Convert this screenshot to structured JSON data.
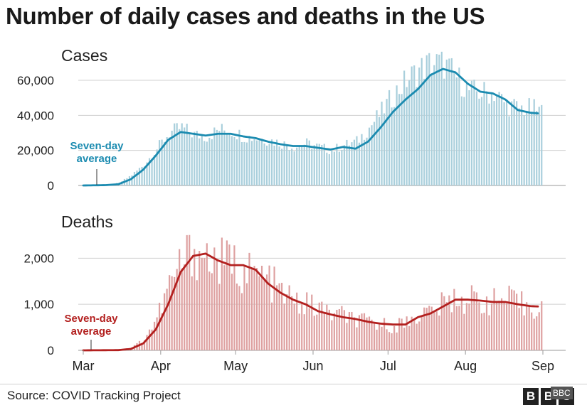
{
  "title": "Number of daily cases and deaths in the US",
  "source": "Source: COVID Tracking Project",
  "logo": "BBC",
  "logo_badge": "BBC",
  "colors": {
    "cases_bar": "#a9cfdc",
    "cases_line": "#1b8bb0",
    "deaths_bar": "#dea0a0",
    "deaths_line": "#b3201f",
    "grid": "#d0d0d0"
  },
  "chart_data": [
    {
      "type": "bar",
      "title": "Cases",
      "x_range": [
        "Mar 1",
        "Aug 31"
      ],
      "x_ticks": [
        "Mar",
        "Apr",
        "May",
        "Jun",
        "Jul",
        "Aug",
        "Sep"
      ],
      "ylim": [
        0,
        75000
      ],
      "y_ticks": [
        0,
        20000,
        40000,
        60000
      ],
      "y_tick_labels": [
        "0",
        "20,000",
        "40,000",
        "60,000"
      ],
      "grid": true,
      "annotation": [
        "Seven-day",
        "average"
      ],
      "series": [
        {
          "name": "Daily cases",
          "style": "bar",
          "daily_keyframes": [
            [
              "Mar 1",
              0
            ],
            [
              "Mar 10",
              300
            ],
            [
              "Mar 15",
              1500
            ],
            [
              "Mar 20",
              6000
            ],
            [
              "Mar 25",
              12000
            ],
            [
              "Mar 30",
              21000
            ],
            [
              "Apr 4",
              30000
            ],
            [
              "Apr 9",
              33000
            ],
            [
              "Apr 14",
              29000
            ],
            [
              "Apr 19",
              28000
            ],
            [
              "Apr 24",
              32000
            ],
            [
              "Apr 29",
              31000
            ],
            [
              "May 4",
              28000
            ],
            [
              "May 9",
              27000
            ],
            [
              "May 14",
              26000
            ],
            [
              "May 19",
              24000
            ],
            [
              "May 24",
              22000
            ],
            [
              "May 29",
              24000
            ],
            [
              "Jun 3",
              22000
            ],
            [
              "Jun 8",
              20000
            ],
            [
              "Jun 13",
              23000
            ],
            [
              "Jun 18",
              25000
            ],
            [
              "Jun 23",
              33000
            ],
            [
              "Jun 28",
              42000
            ],
            [
              "Jul 3",
              52000
            ],
            [
              "Jul 8",
              60000
            ],
            [
              "Jul 13",
              66000
            ],
            [
              "Jul 18",
              70000
            ],
            [
              "Jul 23",
              69000
            ],
            [
              "Jul 28",
              62000
            ],
            [
              "Aug 2",
              54000
            ],
            [
              "Aug 7",
              53000
            ],
            [
              "Aug 12",
              53000
            ],
            [
              "Aug 17",
              46000
            ],
            [
              "Aug 22",
              44000
            ],
            [
              "Aug 27",
              44000
            ],
            [
              "Aug 31",
              42000
            ]
          ]
        },
        {
          "name": "Seven-day average",
          "style": "line",
          "points": [
            [
              "Mar 1",
              0
            ],
            [
              "Mar 10",
              200
            ],
            [
              "Mar 15",
              700
            ],
            [
              "Mar 20",
              3500
            ],
            [
              "Mar 25",
              9000
            ],
            [
              "Mar 30",
              17000
            ],
            [
              "Apr 4",
              26000
            ],
            [
              "Apr 9",
              30500
            ],
            [
              "Apr 14",
              29500
            ],
            [
              "Apr 19",
              28500
            ],
            [
              "Apr 24",
              29500
            ],
            [
              "Apr 29",
              29500
            ],
            [
              "May 4",
              28000
            ],
            [
              "May 9",
              27000
            ],
            [
              "May 14",
              25000
            ],
            [
              "May 19",
              23500
            ],
            [
              "May 24",
              22500
            ],
            [
              "May 29",
              22500
            ],
            [
              "Jun 3",
              21500
            ],
            [
              "Jun 8",
              20500
            ],
            [
              "Jun 13",
              22000
            ],
            [
              "Jun 18",
              21000
            ],
            [
              "Jun 23",
              25000
            ],
            [
              "Jun 28",
              33000
            ],
            [
              "Jul 3",
              42000
            ],
            [
              "Jul 8",
              49000
            ],
            [
              "Jul 13",
              55000
            ],
            [
              "Jul 18",
              63000
            ],
            [
              "Jul 23",
              66500
            ],
            [
              "Jul 28",
              64500
            ],
            [
              "Aug 2",
              58000
            ],
            [
              "Aug 7",
              53500
            ],
            [
              "Aug 12",
              52500
            ],
            [
              "Aug 17",
              49000
            ],
            [
              "Aug 22",
              43000
            ],
            [
              "Aug 27",
              41500
            ],
            [
              "Aug 31",
              41000
            ]
          ]
        }
      ]
    },
    {
      "type": "bar",
      "title": "Deaths",
      "x_range": [
        "Mar 1",
        "Aug 31"
      ],
      "x_ticks": [
        "Mar",
        "Apr",
        "May",
        "Jun",
        "Jul",
        "Aug",
        "Sep"
      ],
      "ylim": [
        0,
        2700
      ],
      "y_ticks": [
        0,
        1000,
        2000
      ],
      "y_tick_labels": [
        "0",
        "1,000",
        "2,000"
      ],
      "grid": true,
      "annotation": [
        "Seven-day",
        "average"
      ],
      "series": [
        {
          "name": "Daily deaths",
          "style": "bar",
          "daily_keyframes": [
            [
              "Mar 1",
              0
            ],
            [
              "Mar 15",
              10
            ],
            [
              "Mar 20",
              60
            ],
            [
              "Mar 25",
              250
            ],
            [
              "Mar 30",
              700
            ],
            [
              "Apr 4",
              1400
            ],
            [
              "Apr 9",
              1900
            ],
            [
              "Apr 14",
              2200
            ],
            [
              "Apr 19",
              2000
            ],
            [
              "Apr 24",
              1900
            ],
            [
              "Apr 29",
              1900
            ],
            [
              "May 4",
              1700
            ],
            [
              "May 9",
              1650
            ],
            [
              "May 14",
              1500
            ],
            [
              "May 19",
              1250
            ],
            [
              "May 24",
              1050
            ],
            [
              "May 29",
              1000
            ],
            [
              "Jun 3",
              900
            ],
            [
              "Jun 8",
              800
            ],
            [
              "Jun 13",
              750
            ],
            [
              "Jun 18",
              650
            ],
            [
              "Jun 23",
              600
            ],
            [
              "Jun 28",
              560
            ],
            [
              "Jul 3",
              520
            ],
            [
              "Jul 8",
              620
            ],
            [
              "Jul 13",
              780
            ],
            [
              "Jul 18",
              850
            ],
            [
              "Jul 23",
              1000
            ],
            [
              "Jul 28",
              1150
            ],
            [
              "Aug 2",
              1100
            ],
            [
              "Aug 7",
              1100
            ],
            [
              "Aug 12",
              1050
            ],
            [
              "Aug 17",
              1100
            ],
            [
              "Aug 22",
              1000
            ],
            [
              "Aug 27",
              950
            ],
            [
              "Aug 31",
              950
            ]
          ]
        },
        {
          "name": "Seven-day average",
          "style": "line",
          "points": [
            [
              "Mar 1",
              0
            ],
            [
              "Mar 15",
              5
            ],
            [
              "Mar 20",
              30
            ],
            [
              "Mar 25",
              150
            ],
            [
              "Mar 30",
              450
            ],
            [
              "Apr 4",
              1000
            ],
            [
              "Apr 9",
              1700
            ],
            [
              "Apr 14",
              2050
            ],
            [
              "Apr 19",
              2100
            ],
            [
              "Apr 24",
              1950
            ],
            [
              "Apr 29",
              1850
            ],
            [
              "May 4",
              1850
            ],
            [
              "May 9",
              1750
            ],
            [
              "May 14",
              1450
            ],
            [
              "May 19",
              1250
            ],
            [
              "May 24",
              1100
            ],
            [
              "May 29",
              1000
            ],
            [
              "Jun 3",
              850
            ],
            [
              "Jun 8",
              780
            ],
            [
              "Jun 13",
              720
            ],
            [
              "Jun 18",
              680
            ],
            [
              "Jun 23",
              620
            ],
            [
              "Jun 28",
              580
            ],
            [
              "Jul 3",
              560
            ],
            [
              "Jul 8",
              560
            ],
            [
              "Jul 13",
              720
            ],
            [
              "Jul 18",
              800
            ],
            [
              "Jul 23",
              950
            ],
            [
              "Jul 28",
              1100
            ],
            [
              "Aug 2",
              1100
            ],
            [
              "Aug 7",
              1080
            ],
            [
              "Aug 12",
              1050
            ],
            [
              "Aug 17",
              1050
            ],
            [
              "Aug 22",
              1000
            ],
            [
              "Aug 27",
              960
            ],
            [
              "Aug 31",
              950
            ]
          ]
        }
      ]
    }
  ]
}
